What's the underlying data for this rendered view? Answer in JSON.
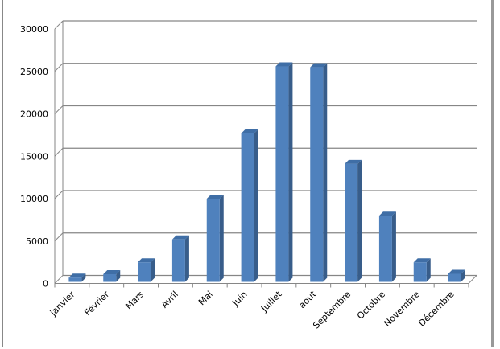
{
  "chart_data": {
    "type": "bar",
    "style": "3d-column",
    "title": "",
    "xlabel": "",
    "ylabel": "",
    "categories": [
      "janvier",
      "Février",
      "Mars",
      "Avril",
      "Mai",
      "Juin",
      "Juillet",
      "aout",
      "Septembre",
      "Octobre",
      "Novembre",
      "Décembre"
    ],
    "values": [
      500,
      900,
      2300,
      5000,
      9800,
      17500,
      25400,
      25300,
      13900,
      7800,
      2300,
      950
    ],
    "ylim": [
      0,
      30000
    ],
    "yticks": [
      "0",
      "5000",
      "10000",
      "15000",
      "20000",
      "25000",
      "30000"
    ],
    "grid": true,
    "legend": "none",
    "colors": {
      "bar_front": "#4f81bd",
      "bar_side": "#385d8a",
      "bar_top": "#3f6ea6",
      "grid": "#868686"
    }
  }
}
